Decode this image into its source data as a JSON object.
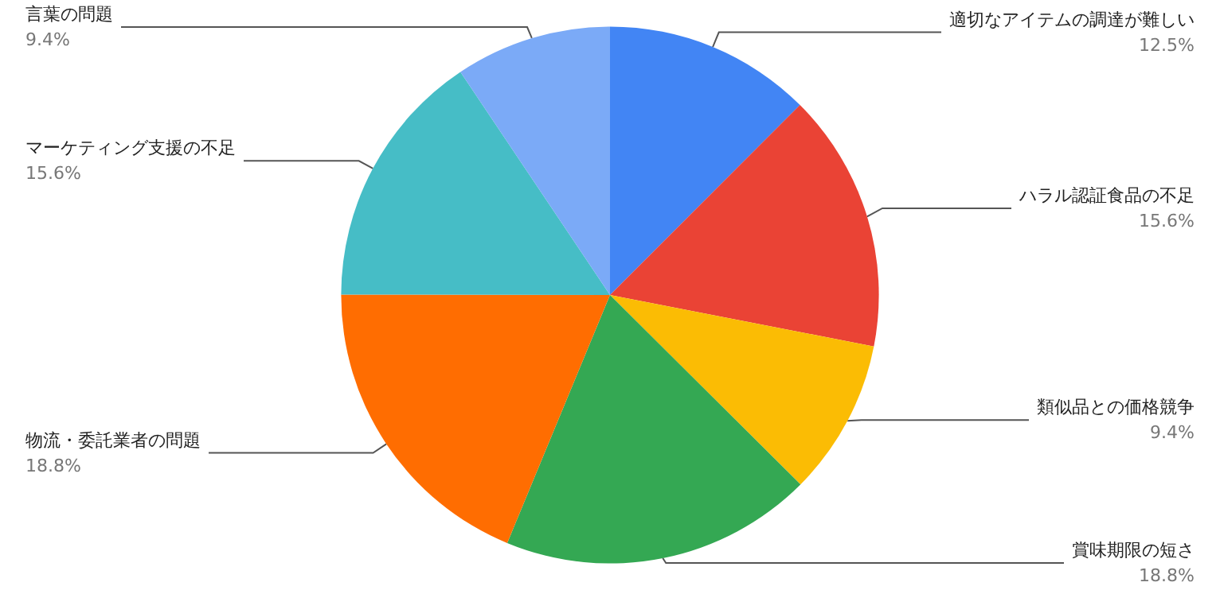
{
  "chart_data": {
    "type": "pie",
    "categories": [
      "適切なアイテムの調達が難しい",
      "ハラル認証食品の不足",
      "類似品との価格競争",
      "賞味期限の短さ",
      "物流・委託業者の問題",
      "マーケティング支援の不足",
      "言葉の問題"
    ],
    "values": [
      12.5,
      15.6,
      9.4,
      18.8,
      18.8,
      15.6,
      9.4
    ],
    "value_labels": [
      "12.5%",
      "15.6%",
      "9.4%",
      "18.8%",
      "18.8%",
      "15.6%",
      "9.4%"
    ],
    "colors": [
      "#4285f4",
      "#ea4335",
      "#fbbc04",
      "#34a853",
      "#ff6d01",
      "#46bdc6",
      "#7baaf7"
    ],
    "legend": false
  }
}
